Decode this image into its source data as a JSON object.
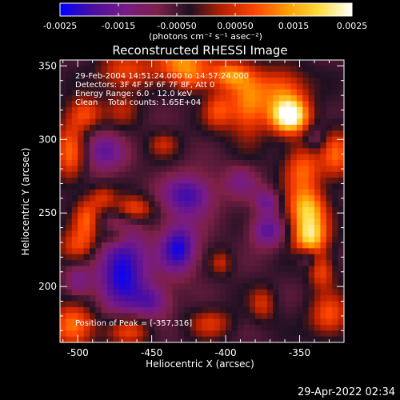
{
  "chart_data": {
    "type": "heatmap",
    "title": "Reconstructed RHESSI Image",
    "xlabel": "Heliocentric X (arcsec)",
    "ylabel": "Heliocentric Y (arcsec)",
    "xlim": [
      -512,
      -320
    ],
    "ylim": [
      162,
      354
    ],
    "x_ticks": [
      -500,
      -450,
      -400,
      -350
    ],
    "y_ticks": [
      200,
      250,
      300,
      350
    ],
    "colorbar": {
      "min": -0.0025,
      "max": 0.0025,
      "ticks": [
        "-0.0025",
        "-0.0015",
        "-0.00050",
        "0.00050",
        "0.0015",
        "0.0025"
      ],
      "unit_label": "(photons cm⁻² s⁻¹ asec⁻²)"
    },
    "annotations": [
      "29-Feb-2004 14:51:24.000 to 14:57:24.000",
      "Detectors: 3F 4F 5F 6F 7F 8F, Att 0",
      "Energy Range: 6.0 - 12.0 keV",
      "Clean    Total counts: 1.65E+04"
    ],
    "peak_label": "Position of Peak = [-357,316]",
    "peak": {
      "x": -357,
      "y": 316,
      "value": 0.0025
    },
    "grid": false,
    "colormap": [
      "#0000ff",
      "#4b0fa0",
      "#781b87",
      "#7e2047",
      "#1e1022",
      "#b81f00",
      "#ff4500",
      "#ff9b00",
      "#ffdd40",
      "#ffffff"
    ],
    "sources": [
      {
        "x": -357,
        "y": 316,
        "sx": 9,
        "sy": 8,
        "a": 1.2
      },
      {
        "x": -362,
        "y": 334,
        "sx": 12,
        "sy": 10,
        "a": 0.55
      },
      {
        "x": -385,
        "y": 322,
        "sx": 9,
        "sy": 15,
        "a": 0.6
      },
      {
        "x": -398,
        "y": 344,
        "sx": 10,
        "sy": 7,
        "a": 0.6
      },
      {
        "x": -405,
        "y": 320,
        "sx": 7,
        "sy": 9,
        "a": 0.45
      },
      {
        "x": -348,
        "y": 280,
        "sx": 9,
        "sy": 12,
        "a": 0.55
      },
      {
        "x": -345,
        "y": 252,
        "sx": 9,
        "sy": 10,
        "a": 0.8
      },
      {
        "x": -343,
        "y": 233,
        "sx": 8,
        "sy": 9,
        "a": 0.85
      },
      {
        "x": -335,
        "y": 210,
        "sx": 6,
        "sy": 8,
        "a": 0.45
      },
      {
        "x": -330,
        "y": 180,
        "sx": 9,
        "sy": 10,
        "a": 0.5
      },
      {
        "x": -325,
        "y": 290,
        "sx": 7,
        "sy": 12,
        "a": 0.5
      },
      {
        "x": -430,
        "y": 352,
        "sx": 13,
        "sy": 7,
        "a": 0.65
      },
      {
        "x": -423,
        "y": 340,
        "sx": 8,
        "sy": 6,
        "a": 0.4
      },
      {
        "x": -468,
        "y": 346,
        "sx": 12,
        "sy": 9,
        "a": 0.45
      },
      {
        "x": -495,
        "y": 317,
        "sx": 8,
        "sy": 8,
        "a": 0.5
      },
      {
        "x": -505,
        "y": 292,
        "sx": 7,
        "sy": 14,
        "a": 0.55
      },
      {
        "x": -494,
        "y": 246,
        "sx": 6,
        "sy": 10,
        "a": 0.5
      },
      {
        "x": -462,
        "y": 253,
        "sx": 9,
        "sy": 6,
        "a": 0.5
      },
      {
        "x": -475,
        "y": 234,
        "sx": 7,
        "sy": 5,
        "a": 0.35
      },
      {
        "x": -500,
        "y": 227,
        "sx": 9,
        "sy": 8,
        "a": 0.45
      },
      {
        "x": -483,
        "y": 260,
        "sx": 6,
        "sy": 6,
        "a": 0.35
      },
      {
        "x": -503,
        "y": 173,
        "sx": 10,
        "sy": 10,
        "a": 0.65
      },
      {
        "x": -465,
        "y": 170,
        "sx": 10,
        "sy": 7,
        "a": 0.45
      },
      {
        "x": -410,
        "y": 175,
        "sx": 10,
        "sy": 7,
        "a": 0.35
      },
      {
        "x": -375,
        "y": 188,
        "sx": 6,
        "sy": 8,
        "a": 0.35
      },
      {
        "x": -403,
        "y": 216,
        "sx": 5,
        "sy": 6,
        "a": 0.3
      },
      {
        "x": -470,
        "y": 320,
        "sx": 8,
        "sy": 8,
        "a": 0.25
      },
      {
        "x": -442,
        "y": 297,
        "sx": 7,
        "sy": 6,
        "a": 0.3
      },
      {
        "x": -470,
        "y": 212,
        "sx": 12,
        "sy": 20,
        "a": -0.75
      },
      {
        "x": -432,
        "y": 226,
        "sx": 9,
        "sy": 12,
        "a": -0.7
      },
      {
        "x": -425,
        "y": 262,
        "sx": 12,
        "sy": 10,
        "a": -0.6
      },
      {
        "x": -450,
        "y": 190,
        "sx": 9,
        "sy": 8,
        "a": -0.45
      },
      {
        "x": -483,
        "y": 292,
        "sx": 10,
        "sy": 10,
        "a": -0.45
      },
      {
        "x": -372,
        "y": 238,
        "sx": 8,
        "sy": 8,
        "a": -0.5
      },
      {
        "x": -372,
        "y": 258,
        "sx": 6,
        "sy": 6,
        "a": -0.4
      },
      {
        "x": -345,
        "y": 220,
        "sx": 5,
        "sy": 5,
        "a": -0.35
      },
      {
        "x": -390,
        "y": 272,
        "sx": 8,
        "sy": 8,
        "a": -0.3
      },
      {
        "x": -500,
        "y": 203,
        "sx": 6,
        "sy": 8,
        "a": -0.35
      },
      {
        "x": -340,
        "y": 300,
        "sx": 5,
        "sy": 6,
        "a": -0.25
      }
    ]
  },
  "footer": {
    "timestamp": "29-Apr-2022 02:34"
  }
}
